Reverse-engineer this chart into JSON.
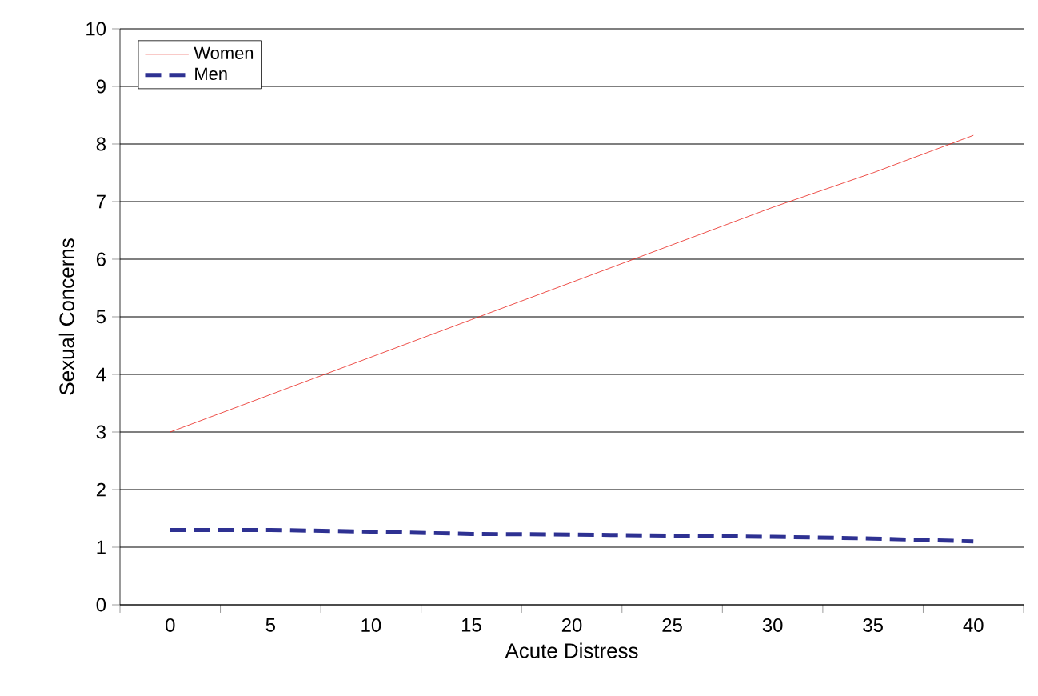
{
  "chart_data": {
    "type": "line",
    "xlabel": "Acute Distress",
    "ylabel": "Sexual Concerns",
    "x": [
      0,
      5,
      10,
      15,
      20,
      25,
      30,
      35,
      40
    ],
    "series": [
      {
        "name": "Women",
        "color": "#e8231c",
        "line_style": "solid",
        "values": [
          3.0,
          3.65,
          4.3,
          4.95,
          5.6,
          6.25,
          6.9,
          7.5,
          8.15
        ]
      },
      {
        "name": "Men",
        "color": "#2e3192",
        "line_style": "dashed",
        "values": [
          1.3,
          1.3,
          1.27,
          1.23,
          1.22,
          1.2,
          1.18,
          1.15,
          1.1
        ]
      }
    ],
    "xlim": [
      -2.5,
      42.5
    ],
    "ylim": [
      0,
      10
    ],
    "xticks": [
      0,
      5,
      10,
      15,
      20,
      25,
      30,
      35,
      40
    ],
    "yticks": [
      0,
      1,
      2,
      3,
      4,
      5,
      6,
      7,
      8,
      9,
      10
    ],
    "grid": "y",
    "legend": "top left",
    "marker": "none"
  }
}
